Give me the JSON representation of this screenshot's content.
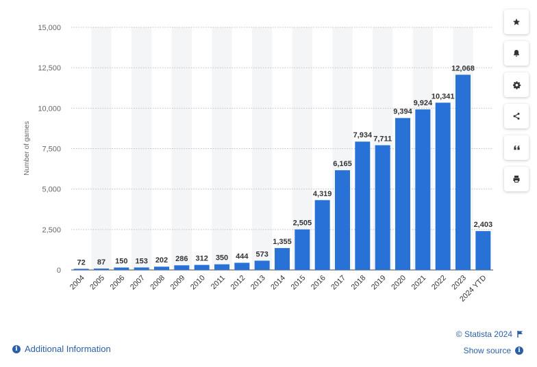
{
  "chart_data": {
    "type": "bar",
    "categories": [
      "2004",
      "2005",
      "2006",
      "2007",
      "2008",
      "2009",
      "2010",
      "2011",
      "2012",
      "2013",
      "2014",
      "2015",
      "2016",
      "2017",
      "2018",
      "2019",
      "2020",
      "2021",
      "2022",
      "2023",
      "2024 YTD"
    ],
    "values": [
      72,
      87,
      150,
      153,
      202,
      286,
      312,
      350,
      444,
      573,
      1355,
      2505,
      4319,
      6165,
      7934,
      7711,
      9394,
      9924,
      10341,
      12068,
      2403
    ],
    "value_labels": [
      "72",
      "87",
      "150",
      "153",
      "202",
      "286",
      "312",
      "350",
      "444",
      "573",
      "1,355",
      "2,505",
      "4,319",
      "6,165",
      "7,934",
      "7,711",
      "9,394",
      "9,924",
      "10,341",
      "12,068",
      "2,403"
    ],
    "ylabel": "Number of games",
    "ylim": [
      0,
      15000
    ],
    "yticks": [
      0,
      2500,
      5000,
      7500,
      10000,
      12500,
      15000
    ],
    "ytick_labels": [
      "0",
      "2,500",
      "5,000",
      "7,500",
      "10,000",
      "12,500",
      "15,000"
    ],
    "grid": true,
    "bar_color": "#2871d6"
  },
  "toolbar": {
    "buttons": [
      {
        "name": "favorite-button",
        "icon": "star-icon"
      },
      {
        "name": "notification-button",
        "icon": "bell-icon"
      },
      {
        "name": "settings-button",
        "icon": "gear-icon"
      },
      {
        "name": "share-button",
        "icon": "share-icon"
      },
      {
        "name": "cite-button",
        "icon": "quote-icon"
      },
      {
        "name": "print-button",
        "icon": "print-icon"
      }
    ]
  },
  "footer": {
    "additional_info": "Additional Information",
    "copyright": "© Statista 2024",
    "show_source": "Show source"
  }
}
